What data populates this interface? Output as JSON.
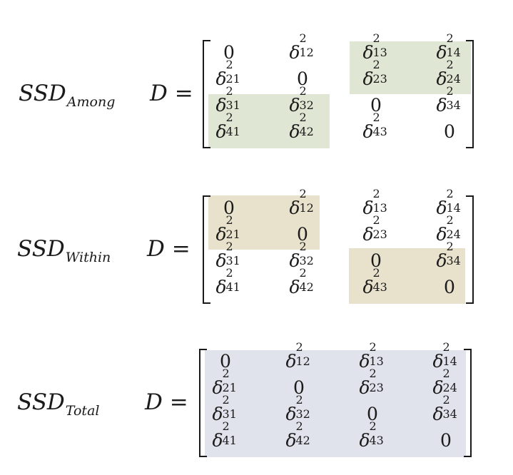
{
  "colors": {
    "among_highlight": "#dfe7d4",
    "within_highlight": "#e8e2cd",
    "total_highlight": "#e1e3ec"
  },
  "blocks": [
    {
      "label_main": "SSD",
      "label_sub": "Among",
      "matrix_var": "D",
      "equals": "=",
      "highlight": "green",
      "cells": [
        [
          "0",
          "δ|2|12",
          "δ|2|13",
          "δ|2|14"
        ],
        [
          "δ|2|21",
          "0",
          "δ|2|23",
          "δ|2|24"
        ],
        [
          "δ|2|31",
          "δ|2|32",
          "0",
          "δ|2|34"
        ],
        [
          "δ|2|41",
          "δ|2|42",
          "δ|2|43",
          "0"
        ]
      ]
    },
    {
      "label_main": "SSD",
      "label_sub": "Within",
      "matrix_var": "D",
      "equals": "=",
      "highlight": "tan",
      "cells": [
        [
          "0",
          "δ|2|12",
          "δ|2|13",
          "δ|2|14"
        ],
        [
          "δ|2|21",
          "0",
          "δ|2|23",
          "δ|2|24"
        ],
        [
          "δ|2|31",
          "δ|2|32",
          "0",
          "δ|2|34"
        ],
        [
          "δ|2|41",
          "δ|2|42",
          "δ|2|43",
          "0"
        ]
      ]
    },
    {
      "label_main": "SSD",
      "label_sub": "Total",
      "matrix_var": "D",
      "equals": "=",
      "highlight": "blue",
      "cells": [
        [
          "0",
          "δ|2|12",
          "δ|2|13",
          "δ|2|14"
        ],
        [
          "δ|2|21",
          "0",
          "δ|2|23",
          "δ|2|24"
        ],
        [
          "δ|2|31",
          "δ|2|32",
          "0",
          "δ|2|34"
        ],
        [
          "δ|2|41",
          "δ|2|42",
          "δ|2|43",
          "0"
        ]
      ]
    }
  ]
}
